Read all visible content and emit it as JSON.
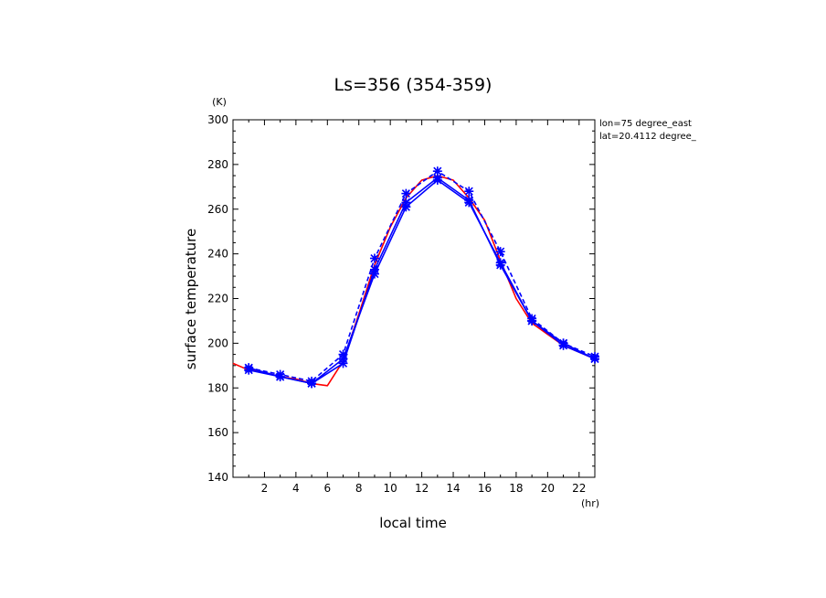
{
  "chart_data": {
    "type": "line",
    "title": "Ls=356 (354-359)",
    "xlabel": "local time",
    "ylabel": "surface temperature",
    "x_unit": "(hr)",
    "y_unit": "(K)",
    "annotations": [
      "lon=75 degree_east",
      "lat=20.4112 degree_"
    ],
    "xlim": [
      0,
      23
    ],
    "ylim": [
      140,
      300
    ],
    "x_ticks": [
      2,
      4,
      6,
      8,
      10,
      12,
      14,
      16,
      18,
      20,
      22
    ],
    "y_ticks": [
      140,
      160,
      180,
      200,
      220,
      240,
      260,
      280,
      300
    ],
    "grid": false,
    "series": [
      {
        "color": "#ff0000",
        "style": "solid",
        "x": [
          0,
          1,
          2,
          3,
          4,
          5,
          6,
          7,
          8,
          9,
          10,
          11,
          12,
          13,
          14,
          15,
          16,
          17,
          18,
          19,
          20,
          21,
          22,
          23
        ],
        "y": [
          191,
          188,
          187,
          185,
          184,
          182,
          181,
          192,
          213,
          235,
          252,
          265,
          273,
          275,
          273,
          265,
          255,
          237,
          220,
          209,
          204,
          199,
          196,
          193
        ]
      },
      {
        "color": "#0000ff",
        "style": "solid",
        "x": [
          1,
          3,
          5,
          7,
          9,
          11,
          13,
          15,
          17,
          19,
          21,
          23
        ],
        "y": [
          189,
          185,
          182,
          191,
          233,
          263,
          274,
          264,
          235,
          210,
          200,
          193
        ]
      },
      {
        "color": "#0000ff",
        "style": "solid",
        "x": [
          1,
          3,
          5,
          7,
          9,
          11,
          13,
          15,
          17,
          19,
          21,
          23
        ],
        "y": [
          188,
          185,
          182,
          193,
          231,
          261,
          273,
          263,
          236,
          210,
          199,
          193
        ]
      },
      {
        "color": "#0000ff",
        "style": "dashed",
        "x": [
          1,
          3,
          5,
          7,
          9,
          11,
          13,
          15,
          17,
          19,
          21,
          23
        ],
        "y": [
          189,
          186,
          183,
          195,
          238,
          267,
          277,
          268,
          241,
          211,
          200,
          194
        ]
      }
    ]
  }
}
